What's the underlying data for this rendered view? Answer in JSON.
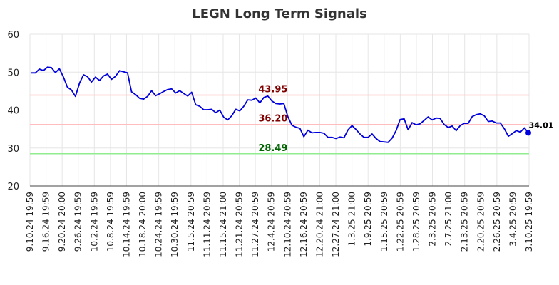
{
  "chart_data": {
    "type": "line",
    "title": "LEGN Long Term Signals",
    "xlabel": "",
    "ylabel": "",
    "ylim": [
      20,
      60
    ],
    "yticks": [
      20,
      30,
      40,
      50,
      60
    ],
    "grid": true,
    "x_tick_labels": [
      "9.10.24 19:59",
      "9.16.24 19:59",
      "9.20.24 20:00",
      "9.26.24 19:59",
      "10.2.24 19:59",
      "10.8.24 19:59",
      "10.14.24 19:59",
      "10.18.24 20:00",
      "10.24.24 19:59",
      "10.30.24 19:59",
      "11.5.24 20:59",
      "11.11.24 20:59",
      "11.15.24 21:00",
      "11.21.24 20:59",
      "11.27.24 20:59",
      "12.4.24 20:59",
      "12.10.24 20:59",
      "12.16.24 20:59",
      "12.20.24 21:00",
      "12.27.24 21:00",
      "1.3.25 21:00",
      "1.9.25 20:59",
      "1.15.25 20:59",
      "1.22.25 20:59",
      "1.28.25 20:59",
      "2.3.25 20:59",
      "2.7.25 21:00",
      "2.13.25 20:59",
      "2.20.25 20:59",
      "2.26.25 20:59",
      "3.4.25 20:59",
      "3.10.25 19:59"
    ],
    "series": [
      {
        "color": "#0000dd",
        "values": [
          49.8,
          49.8,
          50.8,
          50.4,
          51.3,
          51.2,
          49.9,
          50.9,
          48.7,
          46.0,
          45.3,
          43.6,
          47.1,
          49.3,
          48.8,
          47.4,
          48.7,
          47.8,
          49.0,
          49.5,
          48.1,
          48.9,
          50.4,
          50.1,
          49.8,
          44.8,
          44.1,
          43.1,
          42.9,
          43.6,
          45.1,
          43.8,
          44.3,
          44.9,
          45.4,
          45.6,
          44.5,
          45.1,
          44.4,
          43.7,
          44.7,
          41.4,
          41.0,
          40.1,
          40.1,
          40.2,
          39.3,
          40.0,
          38.1,
          37.4,
          38.5,
          40.2,
          39.8,
          41.0,
          42.7,
          42.6,
          43.2,
          41.9,
          43.3,
          43.7,
          42.4,
          41.7,
          41.6,
          41.7,
          38.3,
          36.0,
          35.5,
          35.2,
          33.0,
          34.7,
          34.0,
          34.1,
          34.1,
          33.9,
          32.8,
          32.8,
          32.5,
          32.9,
          32.7,
          34.8,
          35.9,
          34.9,
          33.7,
          32.8,
          32.8,
          33.7,
          32.5,
          31.7,
          31.6,
          31.5,
          32.6,
          34.6,
          37.5,
          37.7,
          34.8,
          36.7,
          36.1,
          36.4,
          37.3,
          38.2,
          37.4,
          37.9,
          37.8,
          36.2,
          35.4,
          35.8,
          34.6,
          35.9,
          36.5,
          36.5,
          38.3,
          38.8,
          39.0,
          38.5,
          37.0,
          37.1,
          36.6,
          36.6,
          35.1,
          33.1,
          33.8,
          34.6,
          34.2,
          35.3,
          34.01
        ]
      }
    ],
    "reference_lines": [
      {
        "value": 43.95,
        "label": "43.95",
        "line_color": "#ffbdbd",
        "label_color": "#800000"
      },
      {
        "value": 36.2,
        "label": "36.20",
        "line_color": "#ffbdbd",
        "label_color": "#800000"
      },
      {
        "value": 28.49,
        "label": "28.49",
        "line_color": "#90ee90",
        "label_color": "#006400"
      }
    ],
    "last_point": {
      "value": 34.01,
      "label": "34.01",
      "color": "#0000dd"
    }
  }
}
